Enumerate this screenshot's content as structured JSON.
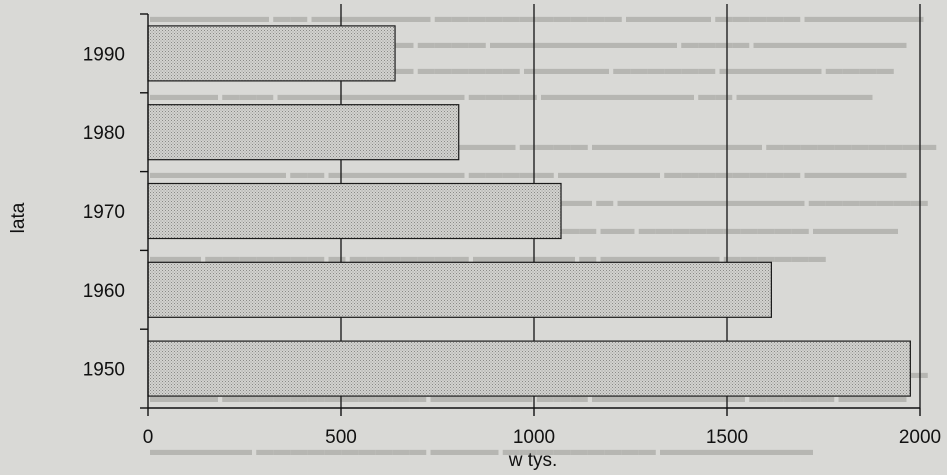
{
  "chart_data": {
    "type": "bar",
    "orientation": "horizontal",
    "categories": [
      "1990",
      "1980",
      "1970",
      "1960",
      "1950"
    ],
    "values": [
      640,
      805,
      1070,
      1615,
      1975
    ],
    "xlabel": "w tys.",
    "ylabel": "lata",
    "xlim": [
      0,
      2000
    ],
    "xticks": [
      0,
      500,
      1000,
      1500,
      2000
    ],
    "grid": "vertical lines",
    "colors": {
      "bar_fill": "#c8c8c5",
      "bar_stroke": "#1a1a1a",
      "grid": "#222222"
    }
  }
}
